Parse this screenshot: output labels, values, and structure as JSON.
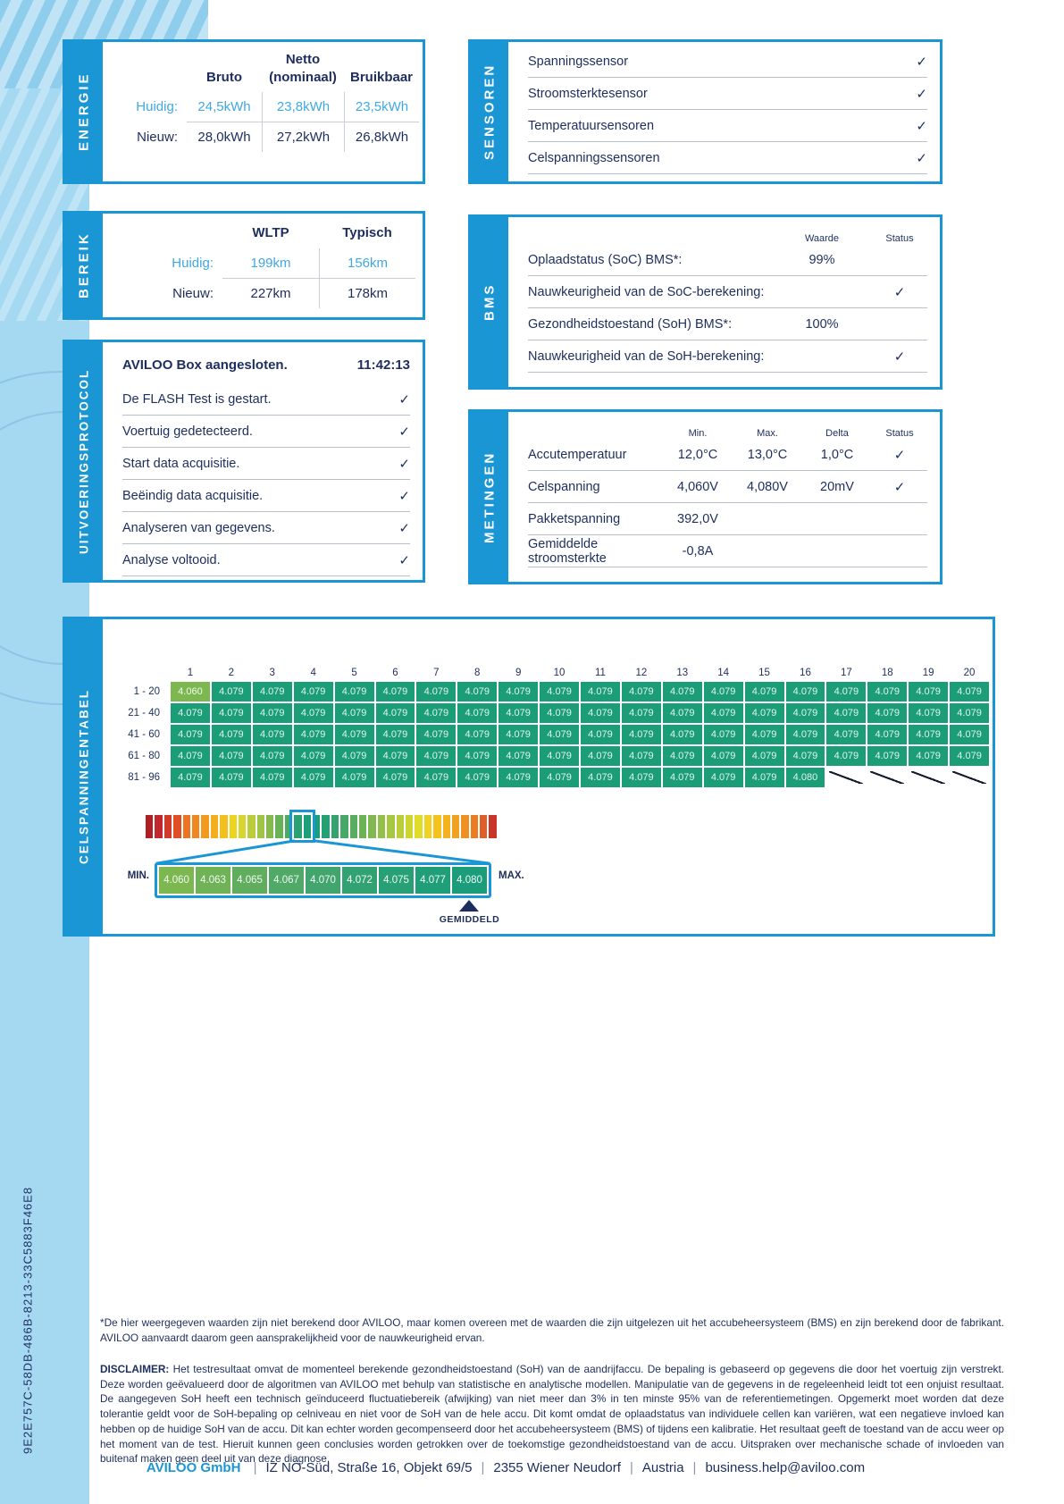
{
  "page": {
    "report_id": "9E2E757C-58DB-486B-8213-33C5883F46E8",
    "footnote": "*De hier weergegeven waarden zijn niet berekend door AVILOO, maar komen overeen met de waarden die zijn uitgelezen uit het accubeheersysteem (BMS) en zijn berekend door de fabrikant. AVILOO aanvaardt daarom geen aansprakelijkheid voor de nauwkeurigheid ervan.",
    "disclaimer_label": "DISCLAIMER:",
    "disclaimer_text": "Het testresultaat omvat de momenteel berekende gezondheidstoestand (SoH) van de aandrijfaccu. De bepaling is gebaseerd op gegevens die door het voertuig zijn verstrekt. Deze worden geëvalueerd door de algoritmen van AVILOO met behulp van statistische en analytische modellen. Manipulatie van de gegevens in de regeleenheid leidt tot een onjuist resultaat. De aangegeven SoH heeft een technisch geïnduceerd fluctuatiebereik (afwijking) van niet meer dan 3% in ten minste 95% van de referentiemetingen. Opgemerkt moet worden dat deze tolerantie geldt voor de SoH-bepaling op celniveau en niet voor de SoH van de hele accu. Dit komt omdat de oplaadstatus van individuele cellen kan variëren, wat een negatieve invloed kan hebben op de huidige SoH van de accu. Dit kan echter worden gecompenseerd door het accubeheersysteem (BMS) of tijdens een kalibratie. Het resultaat geeft de toestand van de accu weer op het moment van de test. Hieruit kunnen geen conclusies worden getrokken over de toekomstige gezondheidstoestand van de accu. Uitspraken over mechanische schade of invloeden van buitenaf maken geen deel uit van deze diagnose.",
    "footer": {
      "company": "AVILOO GmbH",
      "segments": [
        "IZ NÖ-Süd, Straße 16, Objekt 69/5",
        "2355 Wiener Neudorf",
        "Austria",
        "business.help@aviloo.com"
      ]
    },
    "check_glyph": "✓"
  },
  "energie": {
    "tab": "ENERGIE",
    "headers": [
      "Bruto",
      "Netto\n(nominaal)",
      "Bruikbaar"
    ],
    "rows": [
      {
        "label": "Huidig:",
        "values": [
          "24,5kWh",
          "23,8kWh",
          "23,5kWh"
        ],
        "highlight": true
      },
      {
        "label": "Nieuw:",
        "values": [
          "28,0kWh",
          "27,2kWh",
          "26,8kWh"
        ],
        "highlight": false
      }
    ]
  },
  "bereik": {
    "tab": "BEREIK",
    "headers": [
      "WLTP",
      "Typisch"
    ],
    "rows": [
      {
        "label": "Huidig:",
        "values": [
          "199km",
          "156km"
        ],
        "highlight": true
      },
      {
        "label": "Nieuw:",
        "values": [
          "227km",
          "178km"
        ],
        "highlight": false
      }
    ]
  },
  "protocol": {
    "tab": "UITVOERINGSPROTOCOL",
    "title": "AVILOO Box aangesloten.",
    "time": "11:42:13",
    "steps": [
      "De FLASH Test is gestart.",
      "Voertuig gedetecteerd.",
      "Start data acquisitie.",
      "Beëindig data acquisitie.",
      "Analyseren van gegevens.",
      "Analyse voltooid."
    ]
  },
  "sensoren": {
    "tab": "SENSOREN",
    "items": [
      "Spanningssensor",
      "Stroomsterktesensor",
      "Temperatuursensoren",
      "Celspanningssensoren"
    ]
  },
  "bms": {
    "tab": "BMS",
    "col_headers": [
      "Waarde",
      "Status"
    ],
    "rows": [
      {
        "label": "Oplaadstatus (SoC) BMS*:",
        "value": "99%",
        "check": false
      },
      {
        "label": "Nauwkeurigheid van de SoC-berekening:",
        "value": "",
        "check": true
      },
      {
        "label": "Gezondheidstoestand (SoH) BMS*:",
        "value": "100%",
        "check": false
      },
      {
        "label": "Nauwkeurigheid van de SoH-berekening:",
        "value": "",
        "check": true
      }
    ]
  },
  "metingen": {
    "tab": "METINGEN",
    "col_headers": [
      "Min.",
      "Max.",
      "Delta",
      "Status"
    ],
    "rows": [
      {
        "label": "Accutemperatuur",
        "min": "12,0°C",
        "max": "13,0°C",
        "delta": "1,0°C",
        "check": true
      },
      {
        "label": "Celspanning",
        "min": "4,060V",
        "max": "4,080V",
        "delta": "20mV",
        "check": true
      },
      {
        "label": "Pakketspanning",
        "min": "392,0V",
        "max": "",
        "delta": "",
        "check": false
      },
      {
        "label": "Gemiddelde stroomsterkte",
        "min": "-0,8A",
        "max": "",
        "delta": "",
        "check": false
      }
    ]
  },
  "celltable": {
    "tab": "CELSPANNINGENTABEL",
    "col_headers": [
      "1",
      "2",
      "3",
      "4",
      "5",
      "6",
      "7",
      "8",
      "9",
      "10",
      "11",
      "12",
      "13",
      "14",
      "15",
      "16",
      "17",
      "18",
      "19",
      "20"
    ],
    "rows": [
      {
        "label": "1 - 20",
        "values": [
          "4.060",
          "4.079",
          "4.079",
          "4.079",
          "4.079",
          "4.079",
          "4.079",
          "4.079",
          "4.079",
          "4.079",
          "4.079",
          "4.079",
          "4.079",
          "4.079",
          "4.079",
          "4.079",
          "4.079",
          "4.079",
          "4.079",
          "4.079"
        ]
      },
      {
        "label": "21 - 40",
        "values": [
          "4.079",
          "4.079",
          "4.079",
          "4.079",
          "4.079",
          "4.079",
          "4.079",
          "4.079",
          "4.079",
          "4.079",
          "4.079",
          "4.079",
          "4.079",
          "4.079",
          "4.079",
          "4.079",
          "4.079",
          "4.079",
          "4.079",
          "4.079"
        ]
      },
      {
        "label": "41 - 60",
        "values": [
          "4.079",
          "4.079",
          "4.079",
          "4.079",
          "4.079",
          "4.079",
          "4.079",
          "4.079",
          "4.079",
          "4.079",
          "4.079",
          "4.079",
          "4.079",
          "4.079",
          "4.079",
          "4.079",
          "4.079",
          "4.079",
          "4.079",
          "4.079"
        ]
      },
      {
        "label": "61 - 80",
        "values": [
          "4.079",
          "4.079",
          "4.079",
          "4.079",
          "4.079",
          "4.079",
          "4.079",
          "4.079",
          "4.079",
          "4.079",
          "4.079",
          "4.079",
          "4.079",
          "4.079",
          "4.079",
          "4.079",
          "4.079",
          "4.079",
          "4.079",
          "4.079"
        ]
      },
      {
        "label": "81 - 96",
        "values": [
          "4.079",
          "4.079",
          "4.079",
          "4.079",
          "4.079",
          "4.079",
          "4.079",
          "4.079",
          "4.079",
          "4.079",
          "4.079",
          "4.079",
          "4.079",
          "4.079",
          "4.079",
          "4.080",
          null,
          null,
          null,
          null
        ]
      }
    ],
    "min_label": "MIN.",
    "max_label": "MAX.",
    "average_label": "GEMIDDELD",
    "detail_values": [
      "4.060",
      "4.063",
      "4.065",
      "4.067",
      "4.070",
      "4.072",
      "4.075",
      "4.077",
      "4.080"
    ],
    "detail_colors": [
      "#7cb84f",
      "#6fb356",
      "#60ad5e",
      "#50a967",
      "#41a56d",
      "#33a272",
      "#28a076",
      "#1f9e78",
      "#1b9d79"
    ],
    "gradient_bar": [
      "#b01f24",
      "#c1272d",
      "#d13a29",
      "#e04e26",
      "#ec7423",
      "#f08721",
      "#f29a1f",
      "#f4ad1e",
      "#f2c01e",
      "#eed31f",
      "#d8d52e",
      "#bccd3b",
      "#9fc546",
      "#84bb4f",
      "#68b258",
      "#4daa66",
      "#2aa173",
      "#1c9e78",
      "#1c9e78",
      "#24a074",
      "#35a36e",
      "#47a867",
      "#59ad60",
      "#6cb358",
      "#7fb950",
      "#92c049",
      "#a6c741",
      "#bace39",
      "#cdd531",
      "#e1dc29",
      "#f0d322",
      "#f4c31e",
      "#f2b31f",
      "#f0a220",
      "#ee9122",
      "#ea7c24",
      "#de5f27",
      "#c93629"
    ],
    "highlight_start": 16,
    "highlight_count": 2
  },
  "colors": {
    "panel_blue": "#1a96d4",
    "navy": "#1d2e5e",
    "light_blue": "#3fa9e0",
    "teal_cell": "#1b9d78",
    "green_cell": "#7cb84f",
    "band_blue": "#a5d9f2"
  }
}
